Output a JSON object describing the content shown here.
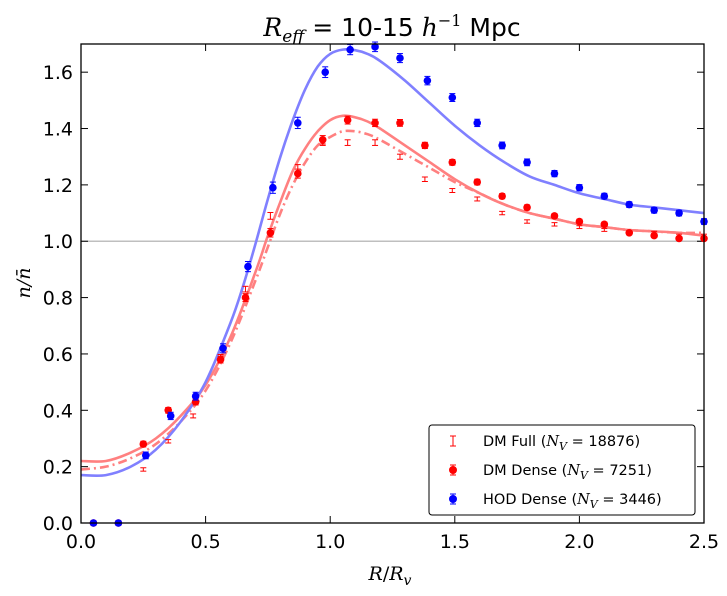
{
  "chart_data": {
    "type": "line",
    "title": "R_eff = 10-15 h^-1 Mpc",
    "title_parts": {
      "lhs": "R",
      "lhs_sub": "eff",
      "range": " = 10-15 ",
      "unit_h": "h",
      "unit_exp": "−1",
      "unit": " Mpc"
    },
    "xlabel": "R/R_v",
    "xlabel_parts": {
      "num": "R",
      "sep": "/",
      "den": "R",
      "den_sub": "v"
    },
    "ylabel": "n/n̄",
    "xlim": [
      0.0,
      2.5
    ],
    "ylim": [
      0.0,
      1.7
    ],
    "xticks": [
      0.0,
      0.5,
      1.0,
      1.5,
      2.0,
      2.5
    ],
    "xtick_labels": [
      "0.0",
      "0.5",
      "1.0",
      "1.5",
      "2.0",
      "2.5"
    ],
    "yticks": [
      0.0,
      0.2,
      0.4,
      0.6,
      0.8,
      1.0,
      1.2,
      1.4,
      1.6
    ],
    "ytick_labels": [
      "0.0",
      "0.2",
      "0.4",
      "0.6",
      "0.8",
      "1.0",
      "1.2",
      "1.4",
      "1.6"
    ],
    "reference_line": {
      "y": 1.0,
      "color": "#bfbfbf"
    },
    "legend_position": "lower-right",
    "series": [
      {
        "name": "DM Full (N_V = 18876)",
        "legend_prefix": "DM Full (",
        "legend_var": "N",
        "legend_sub": "V",
        "legend_suffix": " = 18876)",
        "color": "#ff0000",
        "marker": "errorbar-only",
        "x": [
          0.05,
          0.15,
          0.25,
          0.35,
          0.45,
          0.56,
          0.66,
          0.76,
          0.87,
          0.97,
          1.07,
          1.18,
          1.28,
          1.38,
          1.49,
          1.59,
          1.69,
          1.79,
          1.9,
          2.0,
          2.1,
          2.2,
          2.3,
          2.4,
          2.5
        ],
        "y": [
          0.0,
          0.0,
          0.19,
          0.29,
          0.38,
          0.59,
          0.83,
          1.09,
          1.26,
          1.35,
          1.35,
          1.35,
          1.3,
          1.22,
          1.18,
          1.15,
          1.1,
          1.07,
          1.06,
          1.05,
          1.04,
          1.03,
          1.03,
          1.02,
          1.02
        ],
        "yerr": [
          0.005,
          0.005,
          0.006,
          0.006,
          0.007,
          0.008,
          0.01,
          0.012,
          0.012,
          0.01,
          0.01,
          0.01,
          0.009,
          0.008,
          0.007,
          0.007,
          0.006,
          0.006,
          0.006,
          0.005,
          0.005,
          0.005,
          0.005,
          0.005,
          0.005
        ]
      },
      {
        "name": "DM Dense (N_V = 7251)",
        "legend_prefix": "DM Dense (",
        "legend_var": "N",
        "legend_sub": "V",
        "legend_suffix": " = 7251)",
        "color": "#ff0000",
        "marker": "circle",
        "x": [
          0.05,
          0.15,
          0.25,
          0.35,
          0.46,
          0.56,
          0.66,
          0.76,
          0.87,
          0.97,
          1.07,
          1.18,
          1.28,
          1.38,
          1.49,
          1.59,
          1.69,
          1.79,
          1.9,
          2.0,
          2.1,
          2.2,
          2.3,
          2.4,
          2.5
        ],
        "y": [
          0.0,
          0.0,
          0.28,
          0.4,
          0.43,
          0.58,
          0.8,
          1.03,
          1.24,
          1.36,
          1.43,
          1.42,
          1.42,
          1.34,
          1.28,
          1.21,
          1.16,
          1.12,
          1.09,
          1.07,
          1.06,
          1.03,
          1.02,
          1.01,
          1.01
        ],
        "yerr": [
          0.006,
          0.006,
          0.01,
          0.01,
          0.011,
          0.012,
          0.014,
          0.015,
          0.016,
          0.015,
          0.014,
          0.013,
          0.012,
          0.011,
          0.01,
          0.01,
          0.009,
          0.009,
          0.008,
          0.008,
          0.008,
          0.007,
          0.007,
          0.007,
          0.007
        ]
      },
      {
        "name": "HOD Dense (N_V = 3446)",
        "legend_prefix": "HOD Dense (",
        "legend_var": "N",
        "legend_sub": "V",
        "legend_suffix": " = 3446)",
        "color": "#0000ff",
        "marker": "circle",
        "x": [
          0.05,
          0.15,
          0.26,
          0.36,
          0.46,
          0.57,
          0.67,
          0.77,
          0.87,
          0.98,
          1.08,
          1.18,
          1.28,
          1.39,
          1.49,
          1.59,
          1.69,
          1.79,
          1.9,
          2.0,
          2.1,
          2.2,
          2.3,
          2.4,
          2.5
        ],
        "y": [
          0.0,
          0.0,
          0.24,
          0.38,
          0.45,
          0.62,
          0.91,
          1.19,
          1.42,
          1.6,
          1.68,
          1.69,
          1.65,
          1.57,
          1.51,
          1.42,
          1.34,
          1.28,
          1.24,
          1.19,
          1.16,
          1.13,
          1.11,
          1.1,
          1.07
        ],
        "yerr": [
          0.008,
          0.008,
          0.012,
          0.013,
          0.014,
          0.016,
          0.018,
          0.02,
          0.02,
          0.019,
          0.018,
          0.017,
          0.016,
          0.015,
          0.014,
          0.013,
          0.012,
          0.012,
          0.011,
          0.011,
          0.01,
          0.01,
          0.01,
          0.01,
          0.01
        ]
      }
    ],
    "fit_curves": [
      {
        "name": "DM Full fit",
        "color": "#ff8080",
        "style": "dash-dot",
        "x": [
          0.0,
          0.1,
          0.2,
          0.3,
          0.4,
          0.5,
          0.6,
          0.7,
          0.75,
          0.8,
          0.85,
          0.9,
          0.95,
          1.0,
          1.05,
          1.1,
          1.15,
          1.2,
          1.3,
          1.4,
          1.5,
          1.6,
          1.7,
          1.8,
          1.9,
          2.0,
          2.1,
          2.2,
          2.3,
          2.4,
          2.5
        ],
        "y": [
          0.19,
          0.2,
          0.23,
          0.28,
          0.36,
          0.47,
          0.64,
          0.86,
          0.98,
          1.1,
          1.2,
          1.28,
          1.34,
          1.37,
          1.39,
          1.39,
          1.38,
          1.36,
          1.31,
          1.26,
          1.21,
          1.17,
          1.13,
          1.1,
          1.08,
          1.06,
          1.05,
          1.04,
          1.035,
          1.03,
          1.03
        ]
      },
      {
        "name": "DM Dense fit",
        "color": "#ff8080",
        "style": "solid",
        "x": [
          0.0,
          0.1,
          0.2,
          0.3,
          0.4,
          0.5,
          0.6,
          0.7,
          0.75,
          0.8,
          0.85,
          0.9,
          0.95,
          1.0,
          1.05,
          1.1,
          1.15,
          1.2,
          1.3,
          1.4,
          1.5,
          1.6,
          1.7,
          1.8,
          1.9,
          2.0,
          2.1,
          2.2,
          2.3,
          2.4,
          2.5
        ],
        "y": [
          0.22,
          0.22,
          0.25,
          0.3,
          0.38,
          0.49,
          0.66,
          0.89,
          1.02,
          1.14,
          1.25,
          1.33,
          1.39,
          1.43,
          1.445,
          1.44,
          1.425,
          1.4,
          1.34,
          1.28,
          1.22,
          1.17,
          1.13,
          1.1,
          1.08,
          1.06,
          1.05,
          1.04,
          1.035,
          1.03,
          1.02
        ]
      },
      {
        "name": "HOD Dense fit",
        "color": "#8080ff",
        "style": "solid",
        "x": [
          0.0,
          0.1,
          0.2,
          0.3,
          0.4,
          0.5,
          0.6,
          0.65,
          0.7,
          0.75,
          0.8,
          0.85,
          0.9,
          0.95,
          1.0,
          1.05,
          1.1,
          1.15,
          1.2,
          1.3,
          1.4,
          1.5,
          1.6,
          1.7,
          1.8,
          1.9,
          2.0,
          2.1,
          2.2,
          2.3,
          2.4,
          2.5
        ],
        "y": [
          0.17,
          0.17,
          0.2,
          0.26,
          0.36,
          0.5,
          0.71,
          0.84,
          0.99,
          1.15,
          1.3,
          1.43,
          1.54,
          1.62,
          1.665,
          1.68,
          1.678,
          1.665,
          1.64,
          1.57,
          1.49,
          1.41,
          1.34,
          1.28,
          1.23,
          1.2,
          1.17,
          1.15,
          1.13,
          1.12,
          1.11,
          1.1
        ]
      }
    ]
  }
}
